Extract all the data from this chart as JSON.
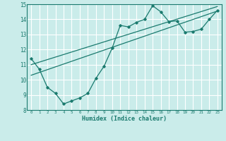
{
  "xlabel": "Humidex (Indice chaleur)",
  "background_color": "#caecea",
  "grid_color": "#ffffff",
  "line_color": "#1a7a6e",
  "xlim": [
    -0.5,
    23.5
  ],
  "ylim": [
    8,
    15
  ],
  "xticks": [
    0,
    1,
    2,
    3,
    4,
    5,
    6,
    7,
    8,
    9,
    10,
    11,
    12,
    13,
    14,
    15,
    16,
    17,
    18,
    19,
    20,
    21,
    22,
    23
  ],
  "yticks": [
    8,
    9,
    10,
    11,
    12,
    13,
    14,
    15
  ],
  "curve_x": [
    0,
    1,
    2,
    3,
    4,
    5,
    6,
    7,
    8,
    9,
    10,
    11,
    12,
    13,
    14,
    15,
    16,
    17,
    18,
    19,
    20,
    21,
    22,
    23
  ],
  "curve_y": [
    11.4,
    10.7,
    9.5,
    9.1,
    8.4,
    8.6,
    8.8,
    9.1,
    10.1,
    10.9,
    12.1,
    13.6,
    13.5,
    13.8,
    14.0,
    14.9,
    14.5,
    13.85,
    13.9,
    13.15,
    13.2,
    13.35,
    14.0,
    14.6
  ],
  "line1_x": [
    0,
    23
  ],
  "line1_y": [
    11.0,
    14.85
  ],
  "line2_x": [
    0,
    23
  ],
  "line2_y": [
    10.3,
    14.55
  ]
}
